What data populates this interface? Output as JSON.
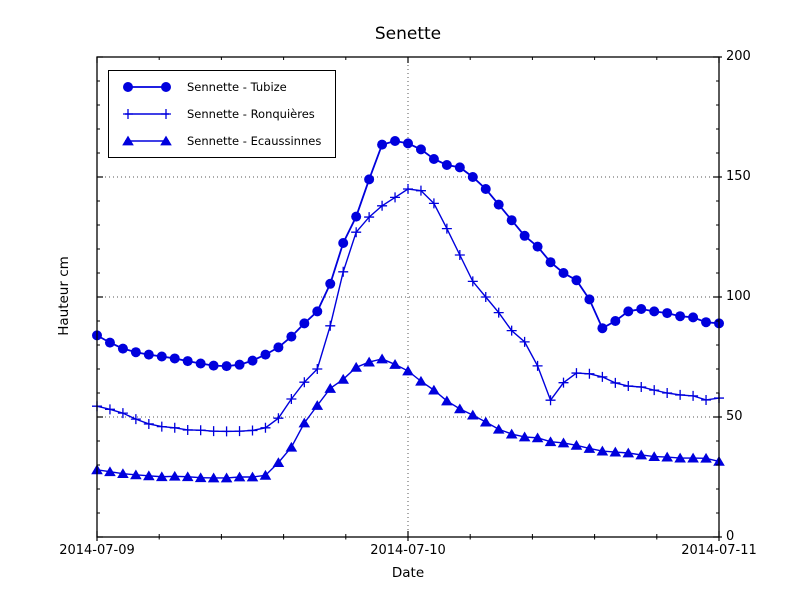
{
  "chart_data": {
    "type": "line",
    "title": "Senette",
    "xlabel": "Date",
    "ylabel": "Hauteur cm",
    "x_tick_labels": [
      "2014-07-09",
      "2014-07-10",
      "2014-07-11"
    ],
    "y_tick_labels": [
      "0",
      "50",
      "100",
      "150",
      "200"
    ],
    "ylim": [
      0,
      200
    ],
    "x_span_days": 2,
    "x_sampling": "hourly values from 2014-07-09 00:00 to 2014-07-11 00:00",
    "grid": "dotted horizontal lines at 50/100/150 and dotted vertical line at 2014-07-10",
    "legend_position": "upper left",
    "line_color": "#0000dd",
    "series": [
      {
        "name": "Sennette - Tubize",
        "marker": "circle",
        "color": "#0000dd",
        "values": [
          84,
          81,
          78.5,
          77,
          76,
          75.2,
          74.4,
          73.3,
          72.3,
          71.4,
          71.2,
          71.8,
          73.5,
          76,
          79,
          83.5,
          89,
          94,
          105.5,
          122.5,
          133.5,
          149,
          163.5,
          165,
          164,
          161.5,
          157.5,
          155,
          154,
          150,
          145,
          138.5,
          132,
          125.5,
          121,
          114.5,
          110,
          107,
          99,
          87,
          90,
          94,
          95,
          94,
          93.3,
          92,
          91.5,
          89.5,
          89
        ]
      },
      {
        "name": "Sennette - Ronquières",
        "marker": "plus",
        "color": "#0000dd",
        "values": [
          54.5,
          53.2,
          51.6,
          49.1,
          47.1,
          46,
          45.5,
          44.6,
          44.5,
          44.1,
          44,
          44.1,
          44.4,
          45.5,
          49.5,
          57.5,
          64.5,
          70,
          88,
          110.5,
          127,
          133.3,
          138,
          141.5,
          145,
          144.3,
          139,
          128.5,
          117.5,
          106.5,
          100,
          93.5,
          86,
          81.3,
          71.3,
          57,
          64.3,
          68.3,
          68,
          66.7,
          64.2,
          62.9,
          62.5,
          61.2,
          60,
          59.2,
          58.8,
          57.1,
          57.9
        ]
      },
      {
        "name": "Sennette - Ecaussinnes",
        "marker": "triangle",
        "color": "#0000dd",
        "values": [
          28,
          27.2,
          26.4,
          25.9,
          25.5,
          25.1,
          25.3,
          25.1,
          24.7,
          24.6,
          24.6,
          25,
          25,
          25.7,
          31,
          37.4,
          47.5,
          54.8,
          61.9,
          65.7,
          70.7,
          72.9,
          74.2,
          71.9,
          69.2,
          64.9,
          61.2,
          56.7,
          53.4,
          50.8,
          47.9,
          44.9,
          42.9,
          41.7,
          41.3,
          39.7,
          39.2,
          38.2,
          36.9,
          35.8,
          35.4,
          35,
          34.2,
          33.5,
          33.3,
          32.9,
          32.9,
          32.8,
          31.5
        ]
      }
    ],
    "grid_y_values": [
      50,
      100,
      150
    ],
    "grid_x_days": [
      1
    ],
    "y_minor_step": 10,
    "x_minor_per_day": 5
  }
}
